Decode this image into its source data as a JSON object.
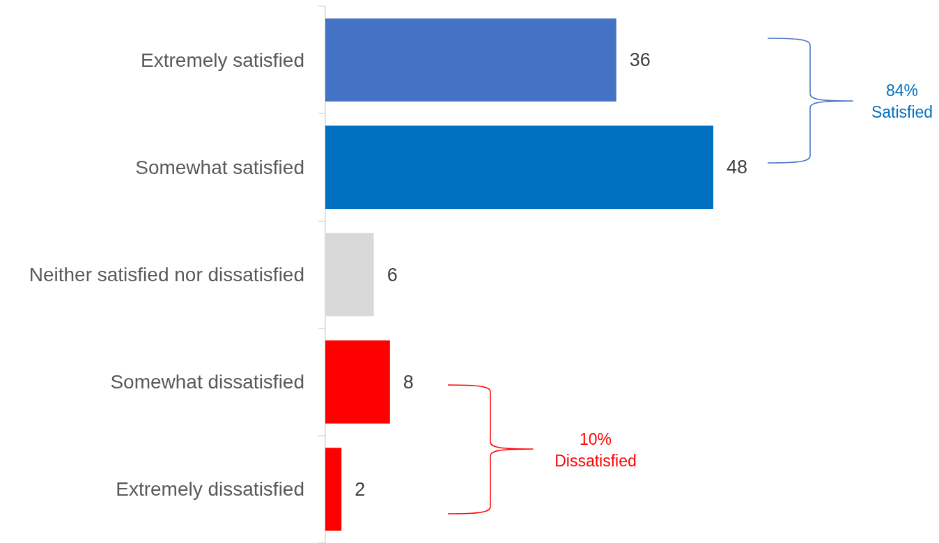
{
  "chart_data": {
    "type": "bar",
    "orientation": "horizontal",
    "categories": [
      "Extremely satisfied",
      "Somewhat satisfied",
      "Neither satisfied nor dissatisfied",
      "Somewhat dissatisfied",
      "Extremely dissatisfied"
    ],
    "values": [
      36,
      48,
      6,
      8,
      2
    ],
    "colors": [
      "#4472c4",
      "#0070c0",
      "#d9d9d9",
      "#ff0000",
      "#ff0000"
    ],
    "data_labels": true,
    "tick_labels": "y",
    "annotations": [
      "84%\nSatisfied",
      "10%\nDissatisfied"
    ]
  }
}
